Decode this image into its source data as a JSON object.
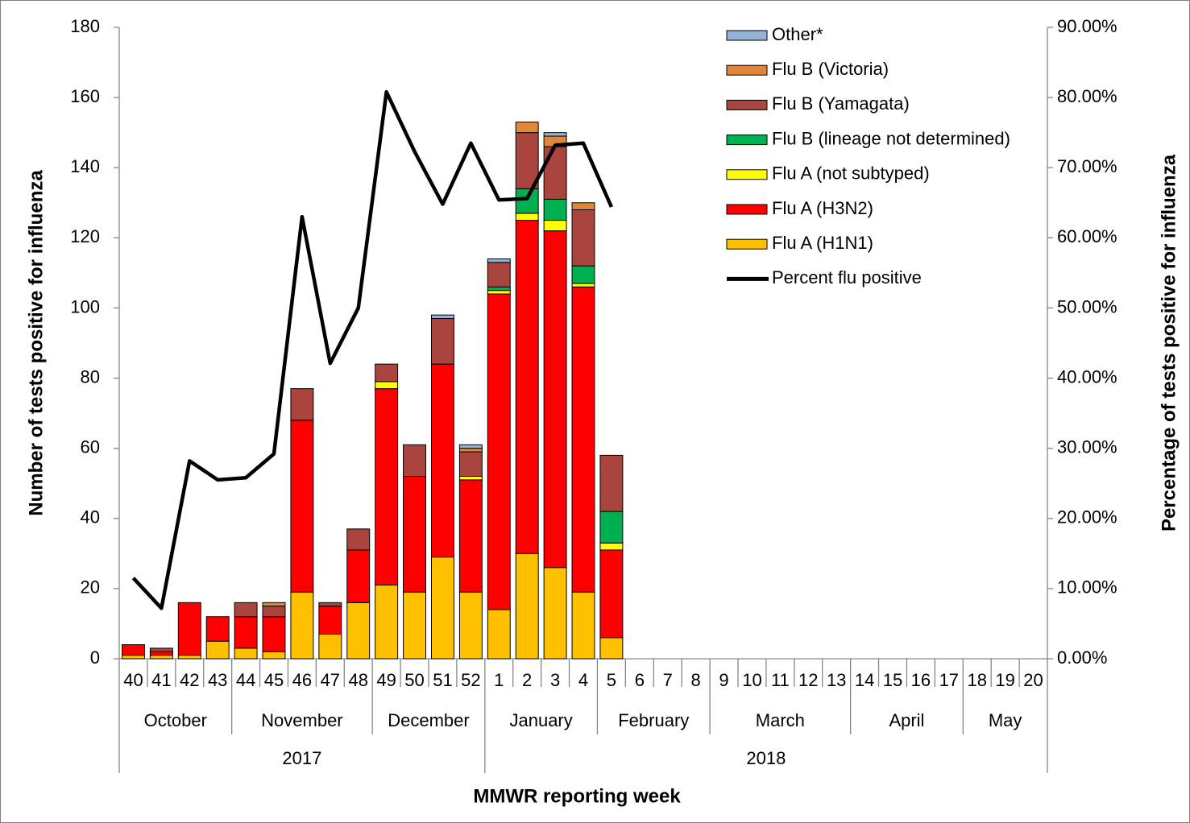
{
  "chart_data": {
    "type": "bar",
    "stacked": true,
    "y_label": "Number of tests positive for influenza",
    "y2_label": "Percentage  of  tests positive for influenza",
    "x_label": "MMWR reporting week",
    "categories": [
      "40",
      "41",
      "42",
      "43",
      "44",
      "45",
      "46",
      "47",
      "48",
      "49",
      "50",
      "51",
      "52",
      "1",
      "2",
      "3",
      "4",
      "5",
      "6",
      "7",
      "8",
      "9",
      "10",
      "11",
      "12",
      "13",
      "14",
      "15",
      "16",
      "17",
      "18",
      "19",
      "20"
    ],
    "months": [
      "October",
      "October",
      "October",
      "October",
      "November",
      "November",
      "November",
      "November",
      "November",
      "December",
      "December",
      "December",
      "December",
      "January",
      "January",
      "January",
      "January",
      "February",
      "February",
      "February",
      "February",
      "March",
      "March",
      "March",
      "March",
      "March",
      "April",
      "April",
      "April",
      "April",
      "May",
      "May",
      "May"
    ],
    "years": [
      "2017",
      "2017",
      "2017",
      "2017",
      "2017",
      "2017",
      "2017",
      "2017",
      "2017",
      "2017",
      "2017",
      "2017",
      "2017",
      "2018",
      "2018",
      "2018",
      "2018",
      "2018",
      "2018",
      "2018",
      "2018",
      "2018",
      "2018",
      "2018",
      "2018",
      "2018",
      "2018",
      "2018",
      "2018",
      "2018",
      "2018",
      "2018",
      "2018"
    ],
    "series": [
      {
        "name": "Flu A (H1N1)",
        "color": "#FFC000",
        "values": [
          1,
          1,
          1,
          5,
          3,
          2,
          19,
          7,
          16,
          21,
          19,
          29,
          19,
          14,
          30,
          26,
          19,
          6,
          null,
          null,
          null,
          null,
          null,
          null,
          null,
          null,
          null,
          null,
          null,
          null,
          null,
          null,
          null
        ]
      },
      {
        "name": "Flu A (H3N2)",
        "color": "#FF0000",
        "values": [
          3,
          1,
          15,
          7,
          9,
          10,
          49,
          8,
          15,
          56,
          33,
          55,
          32,
          90,
          95,
          96,
          87,
          25,
          null,
          null,
          null,
          null,
          null,
          null,
          null,
          null,
          null,
          null,
          null,
          null,
          null,
          null,
          null
        ]
      },
      {
        "name": "Flu A (not subtyped)",
        "color": "#FFFF00",
        "values": [
          0,
          0,
          0,
          0,
          0,
          0,
          0,
          0,
          0,
          2,
          0,
          0,
          1,
          1,
          2,
          3,
          1,
          2,
          null,
          null,
          null,
          null,
          null,
          null,
          null,
          null,
          null,
          null,
          null,
          null,
          null,
          null,
          null
        ]
      },
      {
        "name": "Flu B (lineage not determined)",
        "color": "#00B050",
        "values": [
          0,
          0,
          0,
          0,
          0,
          0,
          0,
          0,
          0,
          0,
          0,
          0,
          0,
          1,
          7,
          6,
          5,
          9,
          null,
          null,
          null,
          null,
          null,
          null,
          null,
          null,
          null,
          null,
          null,
          null,
          null,
          null,
          null
        ]
      },
      {
        "name": "Flu B (Yamagata)",
        "color": "#A9443F",
        "values": [
          0,
          1,
          0,
          0,
          4,
          3,
          9,
          1,
          6,
          5,
          9,
          13,
          7,
          7,
          16,
          15,
          16,
          16,
          null,
          null,
          null,
          null,
          null,
          null,
          null,
          null,
          null,
          null,
          null,
          null,
          null,
          null,
          null
        ]
      },
      {
        "name": "Flu B (Victoria)",
        "color": "#E0873C",
        "values": [
          0,
          0,
          0,
          0,
          0,
          1,
          0,
          0,
          0,
          0,
          0,
          0,
          1,
          0,
          3,
          3,
          2,
          0,
          null,
          null,
          null,
          null,
          null,
          null,
          null,
          null,
          null,
          null,
          null,
          null,
          null,
          null,
          null
        ]
      },
      {
        "name": "Other*",
        "color": "#95B3D7",
        "values": [
          0,
          0,
          0,
          0,
          0,
          0,
          0,
          0,
          0,
          0,
          0,
          1,
          1,
          1,
          0,
          1,
          0,
          0,
          null,
          null,
          null,
          null,
          null,
          null,
          null,
          null,
          null,
          null,
          null,
          null,
          null,
          null,
          null
        ]
      },
      {
        "name": "Percent flu positive",
        "color": "#000000",
        "type": "line",
        "axis": "y2",
        "values": [
          11.5,
          7.2,
          28.2,
          25.5,
          25.8,
          29.2,
          63,
          42.1,
          50,
          80.8,
          72.3,
          64.8,
          73.5,
          65.4,
          65.6,
          73.2,
          73.5,
          64.4,
          null,
          null,
          null,
          null,
          null,
          null,
          null,
          null,
          null,
          null,
          null,
          null,
          null,
          null,
          null
        ]
      }
    ],
    "ylim": [
      0,
      180
    ],
    "yticks": [
      0,
      20,
      40,
      60,
      80,
      100,
      120,
      140,
      160,
      180
    ],
    "y2lim": [
      0,
      90
    ],
    "y2ticks": [
      {
        "value": 0,
        "label": "0.00%"
      },
      {
        "value": 10,
        "label": "10.00%"
      },
      {
        "value": 20,
        "label": "20.00%"
      },
      {
        "value": 30,
        "label": "30.00%"
      },
      {
        "value": 40,
        "label": "40.00%"
      },
      {
        "value": 50,
        "label": "50.00%"
      },
      {
        "value": 60,
        "label": "60.00%"
      },
      {
        "value": 70,
        "label": "70.00%"
      },
      {
        "value": 80,
        "label": "80.00%"
      },
      {
        "value": 90,
        "label": "90.00%"
      }
    ],
    "grid": false,
    "legend": "top-right"
  }
}
